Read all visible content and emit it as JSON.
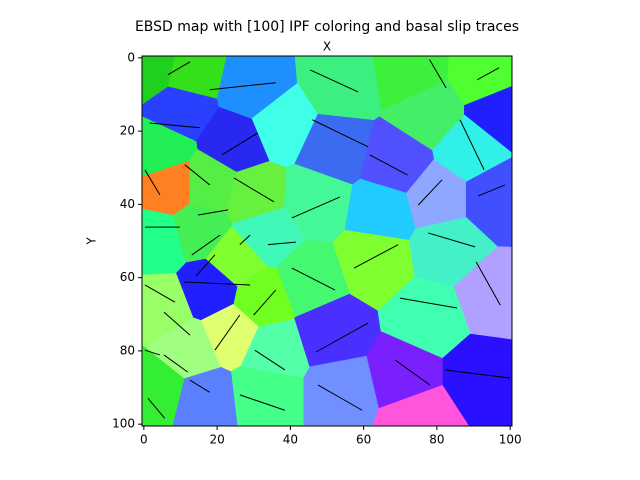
{
  "chart_data": {
    "type": "grain_map",
    "title": "EBSD map with [100] IPF coloring and basal slip traces",
    "x_label": "X",
    "y_label": "Y",
    "xlim": [
      -0.5,
      100.5
    ],
    "ylim": [
      100.5,
      -0.5
    ],
    "xticks": [
      0,
      20,
      40,
      60,
      80,
      100
    ],
    "yticks": [
      0,
      20,
      40,
      60,
      80,
      100
    ],
    "trace_color": "#000000",
    "grains": [
      {
        "x": 3,
        "y": 3,
        "color": "#1fd01f"
      },
      {
        "x": 12,
        "y": 5,
        "color": "#33e01a"
      },
      {
        "x": 10,
        "y": 13,
        "color": "#2a40ff"
      },
      {
        "x": 30,
        "y": 9,
        "color": "#1e8fff"
      },
      {
        "x": 54,
        "y": 7,
        "color": "#3cf080"
      },
      {
        "x": 73,
        "y": 4,
        "color": "#3cf03c"
      },
      {
        "x": 93,
        "y": 5,
        "color": "#50ff30"
      },
      {
        "x": 78,
        "y": 15,
        "color": "#44ee66"
      },
      {
        "x": 97,
        "y": 15,
        "color": "#2020ff"
      },
      {
        "x": 52,
        "y": 25,
        "color": "#3b6bf0"
      },
      {
        "x": 37,
        "y": 18,
        "color": "#40ffe8"
      },
      {
        "x": 25,
        "y": 23,
        "color": "#2828f0"
      },
      {
        "x": 89,
        "y": 25,
        "color": "#30f0e8"
      },
      {
        "x": 69,
        "y": 29,
        "color": "#5050ff"
      },
      {
        "x": 4,
        "y": 26,
        "color": "#22ee55"
      },
      {
        "x": 7,
        "y": 35,
        "color": "#ff8020"
      },
      {
        "x": 18,
        "y": 35,
        "color": "#55ee44"
      },
      {
        "x": 30,
        "y": 38,
        "color": "#66f040"
      },
      {
        "x": 47,
        "y": 39,
        "color": "#44f898"
      },
      {
        "x": 65,
        "y": 42,
        "color": "#20ccff"
      },
      {
        "x": 80,
        "y": 38,
        "color": "#8fa8ff"
      },
      {
        "x": 96,
        "y": 38,
        "color": "#4050ff"
      },
      {
        "x": 4,
        "y": 50,
        "color": "#22ff88"
      },
      {
        "x": 15,
        "y": 47,
        "color": "#44ee55"
      },
      {
        "x": 25,
        "y": 55,
        "color": "#80ff30"
      },
      {
        "x": 33,
        "y": 48,
        "color": "#40f8b8"
      },
      {
        "x": 63,
        "y": 55,
        "color": "#80ff30"
      },
      {
        "x": 83,
        "y": 52,
        "color": "#44f0c8"
      },
      {
        "x": 95,
        "y": 65,
        "color": "#b0a0ff"
      },
      {
        "x": 45,
        "y": 61,
        "color": "#44f870"
      },
      {
        "x": 32,
        "y": 66,
        "color": "#70ff20"
      },
      {
        "x": 5,
        "y": 68,
        "color": "#99ff66"
      },
      {
        "x": 18,
        "y": 63,
        "color": "#2020ff"
      },
      {
        "x": 24,
        "y": 75,
        "color": "#e0ff70"
      },
      {
        "x": 51,
        "y": 75,
        "color": "#4a30ff"
      },
      {
        "x": 78,
        "y": 71,
        "color": "#40ffb0"
      },
      {
        "x": 92,
        "y": 87,
        "color": "#2a10ff"
      },
      {
        "x": 71,
        "y": 87,
        "color": "#7a20ff"
      },
      {
        "x": 54,
        "y": 91,
        "color": "#7090ff"
      },
      {
        "x": 33,
        "y": 91,
        "color": "#44ff88"
      },
      {
        "x": 16,
        "y": 93,
        "color": "#5a80ff"
      },
      {
        "x": 4,
        "y": 90,
        "color": "#33ee33"
      },
      {
        "x": 12,
        "y": 80,
        "color": "#a0ff80"
      },
      {
        "x": 75,
        "y": 98,
        "color": "#ff55dd"
      },
      {
        "x": 35,
        "y": 80,
        "color": "#55ffaa"
      }
    ],
    "slip_traces": [
      {
        "x": [
          6.6,
          12.6
        ],
        "y": [
          4.6,
          1.1
        ]
      },
      {
        "x": [
          18,
          36
        ],
        "y": [
          8.7,
          6.8
        ]
      },
      {
        "x": [
          45.4,
          58.5
        ],
        "y": [
          3.3,
          9.3
        ]
      },
      {
        "x": [
          78,
          82.5
        ],
        "y": [
          0.5,
          8.2
        ]
      },
      {
        "x": [
          91,
          97
        ],
        "y": [
          6,
          2.7
        ]
      },
      {
        "x": [
          1.6,
          15.3
        ],
        "y": [
          17.8,
          19.1
        ]
      },
      {
        "x": [
          21.3,
          31.1
        ],
        "y": [
          26.5,
          20.5
        ]
      },
      {
        "x": [
          46,
          61.2
        ],
        "y": [
          16.9,
          24.3
        ]
      },
      {
        "x": [
          61.7,
          72
        ],
        "y": [
          26.5,
          32
        ]
      },
      {
        "x": [
          86.3,
          92.9
        ],
        "y": [
          16.9,
          30.6
        ]
      },
      {
        "x": [
          0.3,
          4.4
        ],
        "y": [
          30.6,
          37.4
        ]
      },
      {
        "x": [
          11.2,
          18
        ],
        "y": [
          29.2,
          34.7
        ]
      },
      {
        "x": [
          24.6,
          35.5
        ],
        "y": [
          32.8,
          39.3
        ]
      },
      {
        "x": [
          40.4,
          53.5
        ],
        "y": [
          43.7,
          38
        ]
      },
      {
        "x": [
          74.9,
          81.4
        ],
        "y": [
          40.2,
          33.3
        ]
      },
      {
        "x": [
          91.3,
          98.6
        ],
        "y": [
          37.7,
          34.7
        ]
      },
      {
        "x": [
          0.3,
          9.8
        ],
        "y": [
          46.2,
          46.2
        ]
      },
      {
        "x": [
          14.8,
          23
        ],
        "y": [
          42.9,
          41.5
        ]
      },
      {
        "x": [
          13.1,
          20.8
        ],
        "y": [
          53.8,
          48.4
        ]
      },
      {
        "x": [
          26.2,
          29
        ],
        "y": [
          51,
          48.4
        ]
      },
      {
        "x": [
          33.9,
          41.5
        ],
        "y": [
          51,
          50.3
        ]
      },
      {
        "x": [
          57.4,
          69.4
        ],
        "y": [
          57.4,
          51
        ]
      },
      {
        "x": [
          77.6,
          90.4
        ],
        "y": [
          47.8,
          51.6
        ]
      },
      {
        "x": [
          90.7,
          97.3
        ],
        "y": [
          55.7,
          67.5
        ]
      },
      {
        "x": [
          40.4,
          52.2
        ],
        "y": [
          57.4,
          63.4
        ]
      },
      {
        "x": [
          10.9,
          29
        ],
        "y": [
          61.2,
          62
        ]
      },
      {
        "x": [
          14.2,
          19.4
        ],
        "y": [
          59.6,
          53.8
        ]
      },
      {
        "x": [
          0.3,
          8.5
        ],
        "y": [
          62,
          66.7
        ]
      },
      {
        "x": [
          30,
          36
        ],
        "y": [
          70.2,
          63.4
        ]
      },
      {
        "x": [
          5.5,
          12.6
        ],
        "y": [
          69.4,
          75.7
        ]
      },
      {
        "x": [
          69.9,
          85.5
        ],
        "y": [
          65.6,
          68.3
        ]
      },
      {
        "x": [
          47,
          61.2
        ],
        "y": [
          80.3,
          72.4
        ]
      },
      {
        "x": [
          19.4,
          26.2
        ],
        "y": [
          79.8,
          70.2
        ]
      },
      {
        "x": [
          0.3,
          4.4
        ],
        "y": [
          79.8,
          81.1
        ]
      },
      {
        "x": [
          5.5,
          12
        ],
        "y": [
          81.1,
          85.8
        ]
      },
      {
        "x": [
          30.3,
          38.5
        ],
        "y": [
          79.8,
          85.2
        ]
      },
      {
        "x": [
          68.6,
          78.1
        ],
        "y": [
          82.5,
          89.3
        ]
      },
      {
        "x": [
          82.2,
          100
        ],
        "y": [
          85.2,
          87.4
        ]
      },
      {
        "x": [
          47.5,
          59.6
        ],
        "y": [
          89.3,
          96.2
        ]
      },
      {
        "x": [
          1.1,
          5.7
        ],
        "y": [
          92.9,
          98.4
        ]
      },
      {
        "x": [
          12.6,
          18
        ],
        "y": [
          88,
          91.3
        ]
      },
      {
        "x": [
          26.2,
          38.5
        ],
        "y": [
          92,
          96.2
        ]
      }
    ]
  }
}
